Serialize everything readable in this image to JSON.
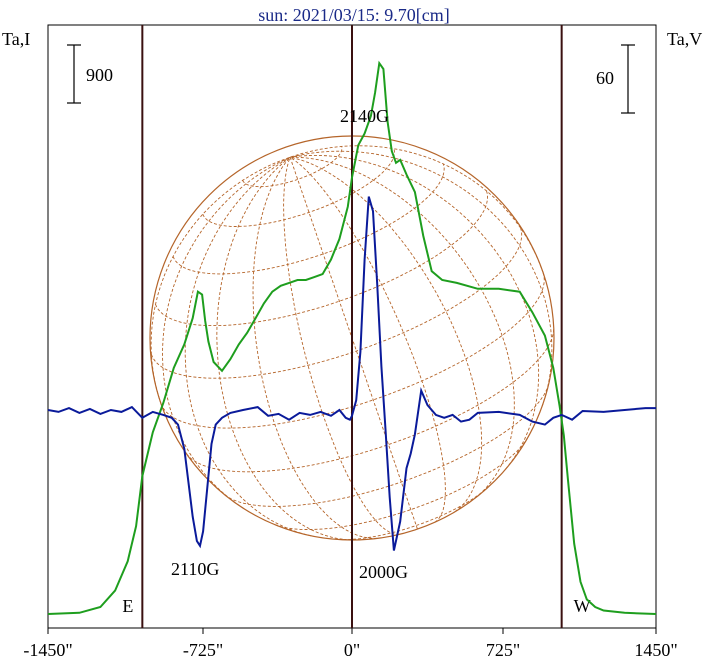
{
  "chart_data": {
    "type": "line",
    "title": "sun: 2021/03/15: 9.70[cm]",
    "ylabel_left": "Ta,I",
    "ylabel_right": "Ta,V",
    "scale_left": "900",
    "scale_right": "60",
    "x_ticks": [
      {
        "value": -1450,
        "label": "-1450\""
      },
      {
        "value": -725,
        "label": "-725\""
      },
      {
        "value": 0,
        "label": "0\""
      },
      {
        "value": 725,
        "label": "725\""
      },
      {
        "value": 1450,
        "label": "1450\""
      }
    ],
    "xlim": [
      -1450,
      1450
    ],
    "limb_markers": [
      {
        "value": -1000,
        "label": "E"
      },
      {
        "value": 0,
        "label": ""
      },
      {
        "value": 1000,
        "label": "W"
      }
    ],
    "annotations": [
      "2140G",
      "2110G",
      "2000G"
    ],
    "grid": false,
    "colors": {
      "stokes_i": "#1e9e1e",
      "stokes_v": "#0a1a9a",
      "disk": "#b5652a",
      "title": "#1a2a88",
      "marker": "#3a1010"
    },
    "series": [
      {
        "key": "I",
        "x": [
          -1450,
          -1300,
          -1200,
          -1130,
          -1070,
          -1030,
          -1000,
          -950,
          -900,
          -850,
          -800,
          -760,
          -735,
          -715,
          -700,
          -685,
          -660,
          -620,
          -580,
          -540,
          -500,
          -460,
          -420,
          -380,
          -340,
          -300,
          -260,
          -220,
          -180,
          -140,
          -100,
          -60,
          -20,
          0,
          30,
          60,
          90,
          110,
          130,
          150,
          170,
          190,
          210,
          230,
          260,
          300,
          340,
          380,
          430,
          500,
          600,
          700,
          800,
          860,
          920,
          960,
          990,
          1010,
          1030,
          1060,
          1090,
          1120,
          1160,
          1200,
          1300,
          1450
        ],
        "y": [
          0,
          20,
          120,
          400,
          900,
          1500,
          2350,
          3100,
          3600,
          4200,
          4600,
          5050,
          5500,
          5450,
          5000,
          4650,
          4300,
          4150,
          4350,
          4600,
          4800,
          5050,
          5300,
          5500,
          5600,
          5650,
          5700,
          5700,
          5750,
          5800,
          6050,
          6400,
          6950,
          7450,
          8000,
          8200,
          8500,
          8900,
          9400,
          9300,
          8400,
          7900,
          7700,
          7750,
          7500,
          7200,
          6450,
          5850,
          5700,
          5650,
          5550,
          5550,
          5500,
          5150,
          4750,
          4200,
          3550,
          3050,
          2300,
          1200,
          550,
          250,
          120,
          60,
          20,
          0
        ]
      },
      {
        "key": "V",
        "x": [
          -1450,
          -1400,
          -1350,
          -1300,
          -1250,
          -1200,
          -1150,
          -1100,
          -1050,
          -1000,
          -950,
          -900,
          -860,
          -830,
          -800,
          -780,
          -760,
          -740,
          -725,
          -710,
          -690,
          -670,
          -650,
          -620,
          -580,
          -520,
          -450,
          -400,
          -350,
          -300,
          -250,
          -200,
          -150,
          -100,
          -60,
          -30,
          -10,
          0,
          20,
          40,
          60,
          80,
          100,
          120,
          140,
          160,
          180,
          200,
          230,
          260,
          280,
          300,
          330,
          360,
          400,
          440,
          480,
          520,
          560,
          600,
          700,
          800,
          860,
          920,
          960,
          1000,
          1050,
          1100,
          1200,
          1300,
          1400,
          1450
        ],
        "y": [
          0,
          -2,
          2,
          -3,
          1,
          -4,
          0,
          -2,
          3,
          -8,
          -2,
          -5,
          -8,
          -15,
          -40,
          -75,
          -110,
          -135,
          -140,
          -125,
          -80,
          -35,
          -15,
          -8,
          -3,
          0,
          3,
          -6,
          -4,
          -10,
          -3,
          -5,
          -2,
          -6,
          0,
          -8,
          -10,
          -6,
          10,
          60,
          155,
          220,
          205,
          130,
          45,
          -20,
          -90,
          -145,
          -115,
          -60,
          -45,
          -25,
          20,
          5,
          -5,
          -8,
          -5,
          -12,
          -10,
          -3,
          -2,
          -5,
          -12,
          -15,
          -8,
          -5,
          -10,
          -1,
          -2,
          0,
          2,
          2
        ]
      }
    ]
  }
}
